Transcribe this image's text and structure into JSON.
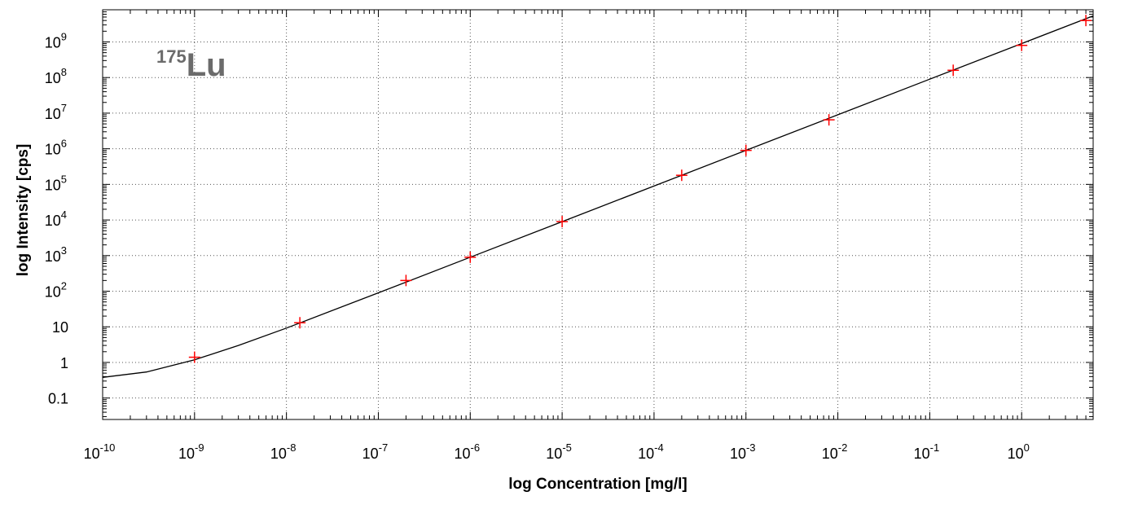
{
  "chart_data": {
    "type": "scatter",
    "title": "",
    "xlabel": "log Concentration [mg/l]",
    "ylabel": "log Intensity [cps]",
    "x_scale": "log",
    "y_scale": "log",
    "xlim": [
      1e-10,
      6.0
    ],
    "ylim": [
      0.025,
      8000000000.0
    ],
    "grid": true,
    "annotation": {
      "sup": "175",
      "main": "Lu"
    },
    "x_ticks": [
      {
        "value": 1e-10,
        "base": "10",
        "exp": "-10"
      },
      {
        "value": 1e-09,
        "base": "10",
        "exp": "-9"
      },
      {
        "value": 1e-08,
        "base": "10",
        "exp": "-8"
      },
      {
        "value": 1e-07,
        "base": "10",
        "exp": "-7"
      },
      {
        "value": 1e-06,
        "base": "10",
        "exp": "-6"
      },
      {
        "value": 1e-05,
        "base": "10",
        "exp": "-5"
      },
      {
        "value": 0.0001,
        "base": "10",
        "exp": "-4"
      },
      {
        "value": 0.001,
        "base": "10",
        "exp": "-3"
      },
      {
        "value": 0.01,
        "base": "10",
        "exp": "-2"
      },
      {
        "value": 0.1,
        "base": "10",
        "exp": "-1"
      },
      {
        "value": 1,
        "base": "10",
        "exp": "0"
      }
    ],
    "y_ticks": [
      {
        "value": 0.1,
        "base": "0.1",
        "exp": ""
      },
      {
        "value": 1,
        "base": "1",
        "exp": ""
      },
      {
        "value": 10,
        "base": "10",
        "exp": ""
      },
      {
        "value": 100.0,
        "base": "10",
        "exp": "2"
      },
      {
        "value": 1000.0,
        "base": "10",
        "exp": "3"
      },
      {
        "value": 10000.0,
        "base": "10",
        "exp": "4"
      },
      {
        "value": 100000.0,
        "base": "10",
        "exp": "5"
      },
      {
        "value": 1000000.0,
        "base": "10",
        "exp": "6"
      },
      {
        "value": 10000000.0,
        "base": "10",
        "exp": "7"
      },
      {
        "value": 100000000.0,
        "base": "10",
        "exp": "8"
      },
      {
        "value": 1000000000.0,
        "base": "10",
        "exp": "9"
      }
    ],
    "series": [
      {
        "type": "scatter",
        "color": "#ff0000",
        "marker": "plus",
        "points": [
          {
            "x": 1e-09,
            "y": 1.4
          },
          {
            "x": 1.4e-08,
            "y": 13
          },
          {
            "x": 2e-07,
            "y": 200
          },
          {
            "x": 1e-06,
            "y": 900
          },
          {
            "x": 1e-05,
            "y": 9000
          },
          {
            "x": 0.0002,
            "y": 180000
          },
          {
            "x": 0.001,
            "y": 900000
          },
          {
            "x": 0.008,
            "y": 6500000
          },
          {
            "x": 0.18,
            "y": 160000000
          },
          {
            "x": 1,
            "y": 800000000
          },
          {
            "x": 5,
            "y": 4000000000
          }
        ]
      },
      {
        "type": "line",
        "color": "#000000",
        "points": [
          {
            "x": 1e-10,
            "y": 0.38
          },
          {
            "x": 3e-10,
            "y": 0.54
          },
          {
            "x": 1e-09,
            "y": 1.18
          },
          {
            "x": 3e-09,
            "y": 3.0
          },
          {
            "x": 1e-08,
            "y": 9.2
          },
          {
            "x": 1e-07,
            "y": 90
          },
          {
            "x": 1e-06,
            "y": 900
          },
          {
            "x": 1e-05,
            "y": 9000
          },
          {
            "x": 0.0001,
            "y": 90000
          },
          {
            "x": 0.001,
            "y": 900000
          },
          {
            "x": 0.01,
            "y": 9000000
          },
          {
            "x": 0.1,
            "y": 90000000
          },
          {
            "x": 1,
            "y": 900000000
          },
          {
            "x": 6,
            "y": 5400000000
          }
        ]
      }
    ]
  }
}
